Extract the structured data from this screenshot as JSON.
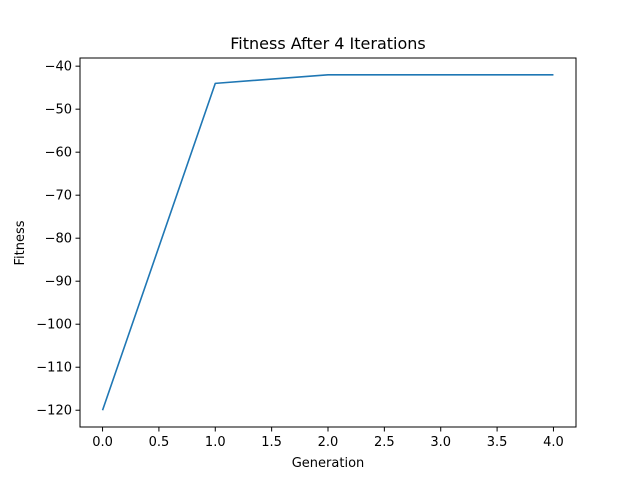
{
  "chart_data": {
    "type": "line",
    "title": "Fitness After 4 Iterations",
    "xlabel": "Generation",
    "ylabel": "Fitness",
    "xlim": [
      -0.2,
      4.2
    ],
    "ylim": [
      -123.9,
      -38.1
    ],
    "x_ticks": [
      0.0,
      0.5,
      1.0,
      1.5,
      2.0,
      2.5,
      3.0,
      3.5,
      4.0
    ],
    "x_tick_labels": [
      "0.0",
      "0.5",
      "1.0",
      "1.5",
      "2.0",
      "2.5",
      "3.0",
      "3.5",
      "4.0"
    ],
    "y_ticks": [
      -40,
      -50,
      -60,
      -70,
      -80,
      -90,
      -100,
      -110,
      -120
    ],
    "y_tick_labels": [
      "−40",
      "−50",
      "−60",
      "−70",
      "−80",
      "−90",
      "−100",
      "−110",
      "−120"
    ],
    "grid": false,
    "series": [
      {
        "x": [
          0,
          1,
          2,
          3,
          4
        ],
        "values": [
          -120,
          -44,
          -42,
          -42,
          -42
        ],
        "color": "#1f77b4"
      }
    ]
  }
}
